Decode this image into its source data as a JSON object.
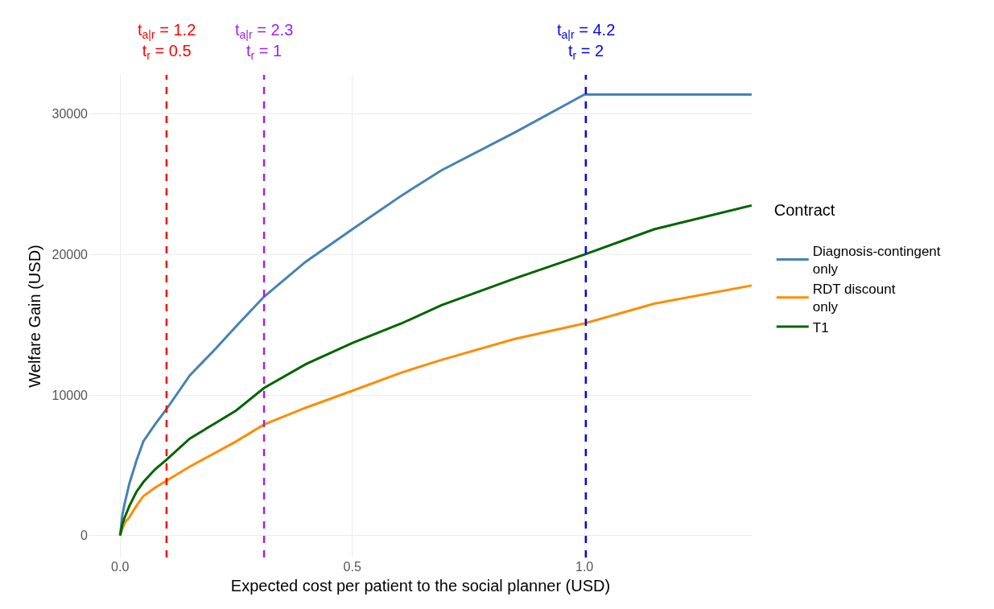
{
  "chart_data": {
    "type": "line",
    "xlabel": "Expected cost per patient to the social planner (USD)",
    "ylabel": "Welfare Gain (USD)",
    "legend_title": "Contract",
    "x": [
      0,
      0.005,
      0.01,
      0.02,
      0.035,
      0.05,
      0.075,
      0.1,
      0.15,
      0.2,
      0.25,
      0.31,
      0.4,
      0.5,
      0.606,
      0.692,
      0.85,
      1.0,
      1.15,
      1.36
    ],
    "series": [
      {
        "name": "Diagnosis-contingent\nonly",
        "color": "#4682b4",
        "values": [
          0,
          1500,
          2300,
          3700,
          5300,
          6700,
          7900,
          9000,
          11400,
          13100,
          14900,
          17000,
          19500,
          21800,
          24200,
          26000,
          28700,
          31400,
          31400,
          31400
        ]
      },
      {
        "name": "RDT discount\nonly",
        "color": "#ff8c00",
        "values": [
          0,
          500,
          900,
          1300,
          2100,
          2800,
          3400,
          3900,
          4900,
          5800,
          6700,
          7900,
          9100,
          10300,
          11600,
          12500,
          14000,
          15100,
          16500,
          17800
        ]
      },
      {
        "name": "T1",
        "color": "#006400",
        "values": [
          0,
          800,
          1300,
          2100,
          3100,
          3800,
          4700,
          5400,
          6900,
          7900,
          8900,
          10500,
          12200,
          13700,
          15100,
          16400,
          18300,
          20000,
          21800,
          23500
        ]
      }
    ],
    "xlim": [
      -0.068,
      1.362
    ],
    "xticks": [
      {
        "value": 0,
        "label": "0.0"
      },
      0.5,
      {
        "value": 1,
        "label": "1.0"
      }
    ],
    "ylim": [
      -1570,
      32800
    ],
    "yticks": [
      0,
      10000,
      20000,
      30000
    ],
    "ref_lines": [
      {
        "axis": "x",
        "value": 0.1,
        "color": "#ff0000",
        "line_style": "dashed"
      },
      {
        "axis": "x",
        "value": 0.31,
        "color": "#a020f0",
        "line_style": "dashed"
      },
      {
        "axis": "x",
        "value": 1.003,
        "color": "#0000ff",
        "line_style": "dashed"
      }
    ],
    "annotations": [
      "t$_{a|r}$ = 1.2\nt$_{r}$ = 0.5",
      "t$_{a|r}$ = 2.3\nt$_{r}$ = 1",
      "t$_{a|r}$ = 4.2\nt$_{r}$ = 2"
    ],
    "grid": true,
    "legend": "right",
    "line_style": "solid",
    "marker": "none"
  }
}
